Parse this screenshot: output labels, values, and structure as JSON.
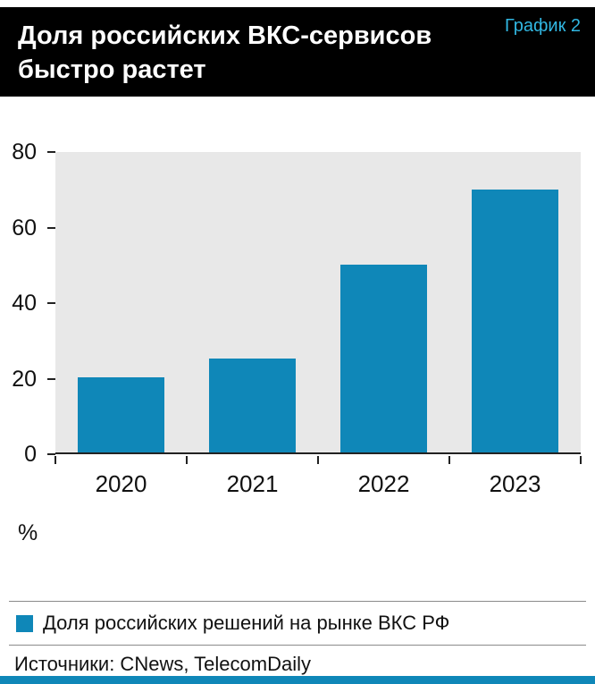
{
  "header": {
    "title_line1": "Доля российских ВКС-сервисов",
    "title_line2": "быстро растет",
    "tag": "График 2"
  },
  "chart_data": {
    "type": "bar",
    "title": "Доля российских ВКС-сервисов быстро растет",
    "categories": [
      "2020",
      "2021",
      "2022",
      "2023"
    ],
    "series": [
      {
        "name": "Доля российских решений на рынке ВКС РФ",
        "values": [
          20,
          25,
          50,
          70
        ]
      }
    ],
    "values": [
      20,
      25,
      50,
      70
    ],
    "xlabel": "",
    "ylabel": "%",
    "ylim": [
      0,
      80
    ],
    "yticks": [
      0,
      20,
      40,
      60,
      80
    ],
    "grid": false,
    "legend_position": "bottom"
  },
  "legend": {
    "label": "Доля российских решений на рынке ВКС РФ"
  },
  "footer": {
    "sources": "Источники: CNews, TelecomDaily"
  },
  "colors": {
    "bar": "#0f87b8",
    "accent": "#31b7e2",
    "plot_bg": "#e8e8e8"
  }
}
